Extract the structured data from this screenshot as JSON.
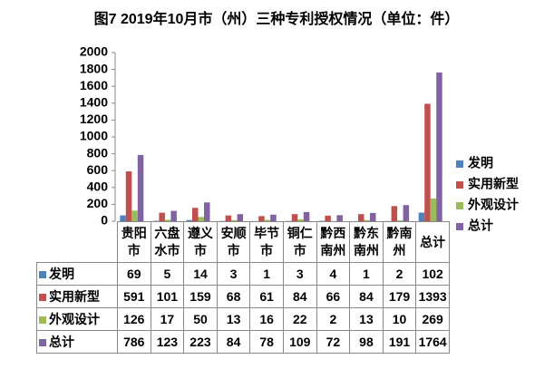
{
  "chart_data": {
    "type": "bar",
    "title": "图7  2019年10月市（州）三种专利授权情况（单位：件）",
    "categories": [
      "贵阳市",
      "六盘水市",
      "遵义市",
      "安顺市",
      "毕节市",
      "铜仁市",
      "黔西南州",
      "黔东南州",
      "黔南州",
      "总计"
    ],
    "series": [
      {
        "name": "发明",
        "color": "#4f81bd",
        "values": [
          69,
          5,
          14,
          3,
          1,
          3,
          4,
          1,
          2,
          102
        ]
      },
      {
        "name": "实用新型",
        "color": "#c0504d",
        "values": [
          591,
          101,
          159,
          68,
          61,
          84,
          66,
          84,
          179,
          1393
        ]
      },
      {
        "name": "外观设计",
        "color": "#9bbb59",
        "values": [
          126,
          17,
          50,
          13,
          16,
          22,
          2,
          13,
          10,
          269
        ]
      },
      {
        "name": "总计",
        "color": "#8064a2",
        "values": [
          786,
          123,
          223,
          84,
          78,
          109,
          72,
          98,
          191,
          1764
        ]
      }
    ],
    "ylim": [
      0,
      2000
    ],
    "yticks": [
      0,
      200,
      400,
      600,
      800,
      1000,
      1200,
      1400,
      1600,
      1800,
      2000
    ],
    "legend": "right"
  }
}
